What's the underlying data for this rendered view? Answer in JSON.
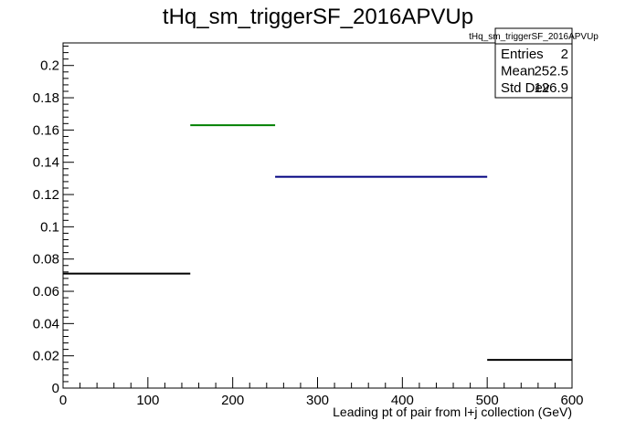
{
  "chart_data": {
    "type": "histogram",
    "title": "tHq_sm_triggerSF_2016APVUp",
    "xlabel": "Leading pt of pair from l+j collection (GeV)",
    "ylabel": "",
    "xlim": [
      0,
      600
    ],
    "ylim": [
      0,
      0.214
    ],
    "x_ticks": [
      0,
      100,
      200,
      300,
      400,
      500,
      600
    ],
    "x_tick_labels": [
      "0",
      "100",
      "200",
      "300",
      "400",
      "500",
      "600"
    ],
    "y_ticks": [
      0,
      0.02,
      0.04,
      0.06,
      0.08,
      0.1,
      0.12,
      0.14,
      0.16,
      0.18,
      0.2
    ],
    "y_tick_labels": [
      "0",
      "0.02",
      "0.04",
      "0.06",
      "0.08",
      "0.1",
      "0.12",
      "0.14",
      "0.16",
      "0.18",
      "0.2"
    ],
    "grid": false,
    "series": [
      {
        "bins": [
          {
            "xlow": 0,
            "xhigh": 150,
            "value": 0.071,
            "color": "#000000"
          },
          {
            "xlow": 150,
            "xhigh": 250,
            "value": 0.163,
            "color": "#008000"
          },
          {
            "xlow": 250,
            "xhigh": 500,
            "value": 0.131,
            "color": "#000080"
          },
          {
            "xlow": 500,
            "xhigh": 600,
            "value": 0.0175,
            "color": "#000000"
          }
        ]
      }
    ],
    "stats_box": {
      "title": "tHq_sm_triggerSF_2016APVUp",
      "placement": "top-right",
      "rows": [
        {
          "label": "Entries",
          "value": "2"
        },
        {
          "label": "Mean",
          "value": "252.5"
        },
        {
          "label": "Std Dev",
          "value": "126.9"
        }
      ]
    }
  }
}
